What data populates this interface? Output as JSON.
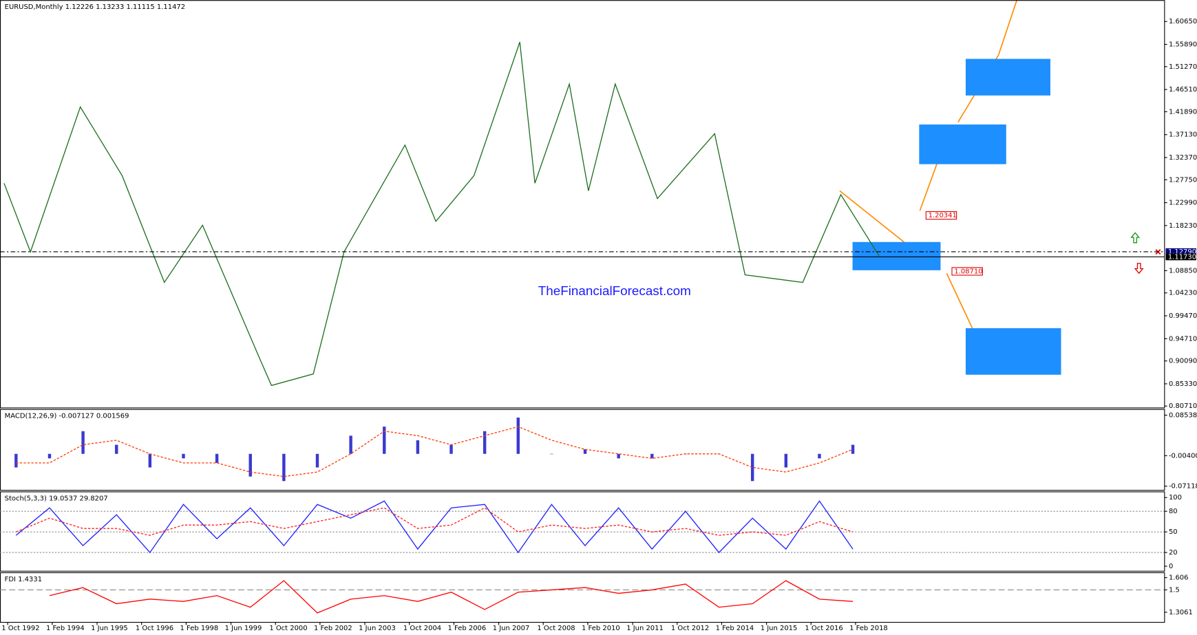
{
  "chart_data": [
    {
      "type": "line",
      "title": "EURUSD,Monthly  1.12226 1.13233 1.11115 1.11472",
      "x": [
        1992.64,
        1993.43,
        1994.92,
        1996.17,
        1997.43,
        1998.57,
        2000.28,
        2000.63,
        2001.88,
        2002.8,
        2004.62,
        2005.54,
        2006.68,
        2008.05,
        2008.5,
        2009.53,
        2010.1,
        2010.9,
        2012.16,
        2013.87,
        2014.78,
        2016.5,
        2017.64,
        2018.78
      ],
      "series": [
        {
          "color": "#1f6f1f",
          "values": [
            1.2703,
            1.1276,
            1.4289,
            1.2861,
            1.0641,
            1.183,
            0.9054,
            0.8498,
            0.8738,
            1.1276,
            1.3496,
            1.191,
            1.2861,
            1.5637,
            1.2703,
            1.4765,
            1.2544,
            1.4765,
            1.2385,
            1.3733,
            1.0799,
            1.0641,
            1.2465,
            1.1196
          ]
        }
      ],
      "xlim": [
        1992.52,
        2027.3
      ],
      "ylim": [
        0.804,
        1.651
      ],
      "yticks": [
        {
          "value": 1.6065,
          "label": "1.60650"
        },
        {
          "value": 1.5589,
          "label": "1.55890"
        },
        {
          "value": 1.5127,
          "label": "1.51270"
        },
        {
          "value": 1.4651,
          "label": "1.46510"
        },
        {
          "value": 1.4189,
          "label": "1.41890"
        },
        {
          "value": 1.3713,
          "label": "1.37130"
        },
        {
          "value": 1.3237,
          "label": "1.32370"
        },
        {
          "value": 1.2775,
          "label": "1.27750"
        },
        {
          "value": 1.2299,
          "label": "1.22990"
        },
        {
          "value": 1.1823,
          "label": "1.18230"
        },
        {
          "value": 1.0885,
          "label": "1.08850"
        },
        {
          "value": 1.0423,
          "label": "1.04230"
        },
        {
          "value": 0.9947,
          "label": "0.99470"
        },
        {
          "value": 0.9471,
          "label": "0.94710"
        },
        {
          "value": 0.9009,
          "label": "0.90090"
        },
        {
          "value": 0.8533,
          "label": "0.85330"
        },
        {
          "value": 0.8071,
          "label": "0.80710"
        }
      ],
      "price_lines": [
        {
          "value": 1.1279,
          "label": "1.12790",
          "color": "#000080"
        },
        {
          "value": 1.1173,
          "label": "1.11730",
          "color": "#000000"
        }
      ],
      "annotations": [
        {
          "value": 1.20341,
          "label": "1.20341"
        },
        {
          "value": 1.0871,
          "label": "1.08710"
        }
      ],
      "zones": [
        {
          "x": [
            2017.99,
            2020.62
          ],
          "y": [
            1.0894,
            1.1481
          ]
        },
        {
          "x": [
            2019.98,
            2022.58
          ],
          "y": [
            1.3099,
            1.3924
          ]
        },
        {
          "x": [
            2021.37,
            2023.9
          ],
          "y": [
            1.4527,
            1.5288
          ]
        },
        {
          "x": [
            2021.37,
            2024.22
          ],
          "y": [
            0.8722,
            0.9689
          ]
        }
      ],
      "zone_color": "#1e8fff",
      "watermark": "TheFinancialForecast.com"
    },
    {
      "type": "bar",
      "title": "MACD(12,26,9) -0.007127 0.001569",
      "x": [
        1993,
        1994,
        1995,
        1996,
        1997,
        1998,
        1999,
        2000,
        2001,
        2002,
        2003,
        2004,
        2005,
        2006,
        2007,
        2008,
        2009,
        2010,
        2011,
        2012,
        2013,
        2014,
        2015,
        2016,
        2017,
        2018
      ],
      "series": [
        {
          "type": "bar",
          "color": "#3a3ad0",
          "values": [
            -0.03,
            -0.01,
            0.05,
            0.02,
            -0.03,
            -0.01,
            -0.02,
            -0.05,
            -0.06,
            -0.03,
            0.04,
            0.06,
            0.03,
            0.02,
            0.05,
            0.08,
            0.0,
            0.01,
            -0.01,
            -0.01,
            0.0,
            0.0,
            -0.06,
            -0.03,
            -0.01,
            0.02
          ]
        },
        {
          "type": "line",
          "dashed": true,
          "color": "#ff3b00",
          "values": [
            -0.02,
            -0.02,
            0.02,
            0.03,
            0.0,
            -0.02,
            -0.02,
            -0.04,
            -0.05,
            -0.04,
            0.0,
            0.05,
            0.04,
            0.02,
            0.04,
            0.06,
            0.03,
            0.01,
            0.0,
            -0.01,
            0.0,
            0.0,
            -0.03,
            -0.04,
            -0.02,
            0.01
          ]
        }
      ],
      "xlim": [
        1992.52,
        2027.3
      ],
      "ylim": [
        -0.0796,
        0.0988
      ],
      "yticks": [
        {
          "value": 0.085383,
          "label": "0.085383"
        },
        {
          "value": -0.004,
          "label": "-0.004000"
        },
        {
          "value": -0.071181,
          "label": "-0.071181"
        }
      ]
    },
    {
      "type": "line",
      "title": "Stoch(5,3,3) 19.0537 29.8207",
      "x": [
        1993,
        1994,
        1995,
        1996,
        1997,
        1998,
        1999,
        2000,
        2001,
        2002,
        2003,
        2004,
        2005,
        2006,
        2007,
        2008,
        2009,
        2010,
        2011,
        2012,
        2013,
        2014,
        2015,
        2016,
        2017,
        2018
      ],
      "series": [
        {
          "color": "#2020ff",
          "values": [
            45,
            85,
            30,
            75,
            20,
            90,
            40,
            85,
            30,
            90,
            70,
            95,
            25,
            85,
            90,
            20,
            90,
            30,
            85,
            25,
            80,
            20,
            70,
            25,
            95,
            25
          ]
        },
        {
          "color": "#ff2020",
          "dashed": true,
          "values": [
            50,
            70,
            55,
            55,
            45,
            60,
            60,
            65,
            55,
            65,
            75,
            85,
            55,
            60,
            85,
            50,
            60,
            55,
            60,
            50,
            55,
            45,
            50,
            45,
            65,
            50
          ]
        }
      ],
      "xlim": [
        1992.52,
        2027.3
      ],
      "ylim": [
        -6.7,
        108.9
      ],
      "yticks": [
        100,
        80,
        50,
        20,
        0
      ],
      "levels": [
        80,
        50,
        20
      ]
    },
    {
      "type": "line",
      "title": "FDI 1.4331",
      "x": [
        1993,
        1994,
        1995,
        1996,
        1997,
        1998,
        1999,
        2000,
        2001,
        2002,
        2003,
        2004,
        2005,
        2006,
        2007,
        2008,
        2009,
        2010,
        2011,
        2012,
        2013,
        2014,
        2015,
        2016,
        2017,
        2018
      ],
      "series": [
        {
          "color": "#ff0000",
          "values": [
            null,
            1.45,
            1.52,
            1.38,
            1.42,
            1.4,
            1.45,
            1.35,
            1.58,
            1.3,
            1.42,
            1.45,
            1.4,
            1.48,
            1.33,
            1.48,
            1.5,
            1.52,
            1.47,
            1.5,
            1.55,
            1.35,
            1.38,
            1.58,
            1.42,
            1.4
          ]
        }
      ],
      "xlim": [
        1992.52,
        2027.3
      ],
      "ylim": [
        1.222,
        1.652
      ],
      "yticks": [
        {
          "value": 1.606,
          "label": "1.606"
        },
        1.5,
        {
          "value": 1.3061,
          "label": "1.3061"
        }
      ],
      "levels": [
        1.5
      ],
      "xticks": [
        {
          "value": 1992.75,
          "label": "1 Oct 1992"
        },
        {
          "value": 1994.08,
          "label": "1 Feb 1994"
        },
        {
          "value": 1995.42,
          "label": "1 Jun 1995"
        },
        {
          "value": 1996.75,
          "label": "1 Oct 1996"
        },
        {
          "value": 1998.08,
          "label": "1 Feb 1998"
        },
        {
          "value": 1999.42,
          "label": "1 Jun 1999"
        },
        {
          "value": 2000.75,
          "label": "1 Oct 2000"
        },
        {
          "value": 2002.08,
          "label": "1 Feb 2002"
        },
        {
          "value": 2003.42,
          "label": "1 Jun 2003"
        },
        {
          "value": 2004.75,
          "label": "1 Oct 2004"
        },
        {
          "value": 2006.08,
          "label": "1 Feb 2006"
        },
        {
          "value": 2007.42,
          "label": "1 Jun 2007"
        },
        {
          "value": 2008.75,
          "label": "1 Oct 2008"
        },
        {
          "value": 2010.08,
          "label": "1 Feb 2010"
        },
        {
          "value": 2011.42,
          "label": "1 Jun 2011"
        },
        {
          "value": 2012.75,
          "label": "1 Oct 2012"
        },
        {
          "value": 2014.08,
          "label": "1 Feb 2014"
        },
        {
          "value": 2015.42,
          "label": "1 Jun 2015"
        },
        {
          "value": 2016.75,
          "label": "1 Oct 2016"
        },
        {
          "value": 2018.08,
          "label": "1 Feb 2018"
        }
      ]
    }
  ]
}
